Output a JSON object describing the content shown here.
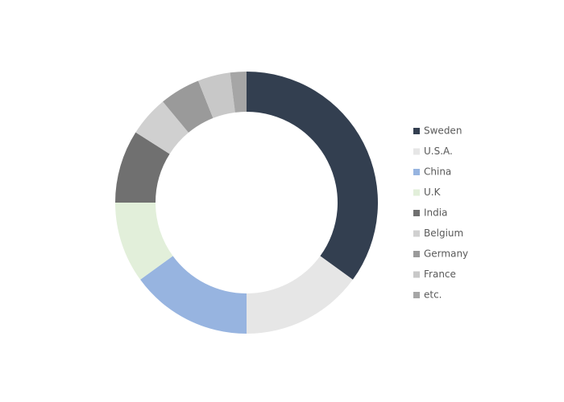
{
  "chart_data": {
    "type": "donut",
    "categories": [
      "Sweden",
      "U.S.A.",
      "China",
      "U.K",
      "India",
      "Belgium",
      "Germany",
      "France",
      "etc."
    ],
    "values": [
      35,
      15,
      15,
      10,
      9,
      5,
      5,
      4,
      2
    ],
    "colors": [
      "#333f50",
      "#e6e6e6",
      "#97b4e0",
      "#e2efda",
      "#707070",
      "#d0d0d0",
      "#9a9a9a",
      "#c8c8c8",
      "#a6a6a6"
    ],
    "legend": "right"
  }
}
